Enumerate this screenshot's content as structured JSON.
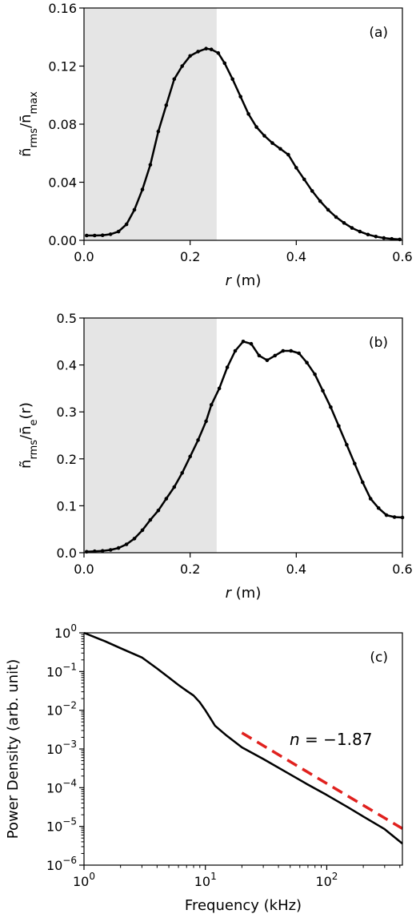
{
  "chart_data": [
    {
      "type": "line",
      "panel_label": "(a)",
      "xlabel": "r (m)",
      "ylabel": "ñrms/n̄max",
      "xlim": [
        0.0,
        0.6
      ],
      "ylim": [
        0.0,
        0.16
      ],
      "xticks": [
        0.0,
        0.2,
        0.4,
        0.6
      ],
      "xtick_labels": [
        "0.0",
        "0.2",
        "0.4",
        "0.6"
      ],
      "yticks": [
        0.0,
        0.04,
        0.08,
        0.12,
        0.16
      ],
      "ytick_labels": [
        "0.00",
        "0.04",
        "0.08",
        "0.12",
        "0.16"
      ],
      "shaded_region": [
        0.0,
        0.25
      ],
      "grid": false,
      "line_color": "#000000",
      "shade_color": "#e5e5e5",
      "x": [
        0.005,
        0.02,
        0.035,
        0.05,
        0.065,
        0.08,
        0.095,
        0.11,
        0.125,
        0.14,
        0.155,
        0.17,
        0.185,
        0.2,
        0.215,
        0.23,
        0.24,
        0.253,
        0.265,
        0.28,
        0.295,
        0.31,
        0.325,
        0.34,
        0.355,
        0.37,
        0.385,
        0.4,
        0.415,
        0.43,
        0.445,
        0.46,
        0.475,
        0.49,
        0.505,
        0.52,
        0.535,
        0.55,
        0.565,
        0.58,
        0.595
      ],
      "y": [
        0.0033,
        0.0033,
        0.0035,
        0.0042,
        0.006,
        0.011,
        0.021,
        0.035,
        0.052,
        0.075,
        0.093,
        0.111,
        0.12,
        0.127,
        0.13,
        0.132,
        0.1315,
        0.129,
        0.122,
        0.111,
        0.099,
        0.087,
        0.078,
        0.072,
        0.067,
        0.063,
        0.059,
        0.05,
        0.042,
        0.034,
        0.027,
        0.021,
        0.016,
        0.012,
        0.0085,
        0.006,
        0.004,
        0.0026,
        0.0016,
        0.001,
        0.0006
      ]
    },
    {
      "type": "line",
      "panel_label": "(b)",
      "xlabel": "r (m)",
      "ylabel": "ñrms/n̄e(r)",
      "xlim": [
        0.0,
        0.6
      ],
      "ylim": [
        0.0,
        0.5
      ],
      "xticks": [
        0.0,
        0.2,
        0.4,
        0.6
      ],
      "xtick_labels": [
        "0.0",
        "0.2",
        "0.4",
        "0.6"
      ],
      "yticks": [
        0.0,
        0.1,
        0.2,
        0.3,
        0.4,
        0.5
      ],
      "ytick_labels": [
        "0.0",
        "0.1",
        "0.2",
        "0.3",
        "0.4",
        "0.5"
      ],
      "shaded_region": [
        0.0,
        0.25
      ],
      "grid": false,
      "line_color": "#000000",
      "shade_color": "#e5e5e5",
      "x": [
        0.005,
        0.02,
        0.035,
        0.05,
        0.065,
        0.08,
        0.095,
        0.11,
        0.125,
        0.14,
        0.155,
        0.17,
        0.185,
        0.2,
        0.215,
        0.23,
        0.24,
        0.255,
        0.27,
        0.285,
        0.3,
        0.315,
        0.33,
        0.345,
        0.36,
        0.375,
        0.39,
        0.405,
        0.42,
        0.435,
        0.45,
        0.465,
        0.48,
        0.495,
        0.51,
        0.525,
        0.54,
        0.555,
        0.57,
        0.585,
        0.6
      ],
      "y": [
        0.002,
        0.003,
        0.004,
        0.006,
        0.01,
        0.018,
        0.03,
        0.048,
        0.07,
        0.09,
        0.115,
        0.14,
        0.17,
        0.205,
        0.24,
        0.28,
        0.315,
        0.35,
        0.395,
        0.43,
        0.45,
        0.445,
        0.42,
        0.41,
        0.42,
        0.43,
        0.43,
        0.425,
        0.405,
        0.38,
        0.345,
        0.31,
        0.27,
        0.23,
        0.19,
        0.15,
        0.115,
        0.095,
        0.08,
        0.076,
        0.075
      ]
    },
    {
      "type": "line",
      "panel_label": "(c)",
      "xlabel": "Frequency (kHz)",
      "ylabel": "Power Density (arb. unit)",
      "xscale": "log",
      "yscale": "log",
      "xlim": [
        1,
        420
      ],
      "ylim": [
        1e-06,
        1
      ],
      "xticks": [
        1,
        10,
        100
      ],
      "yticks": [
        1e-06,
        1e-05,
        0.0001,
        0.001,
        0.01,
        0.1,
        1
      ],
      "xtick_base": "10",
      "xtick_exponents": [
        "0",
        "1",
        "2"
      ],
      "ytick_base": "10",
      "ytick_exponents": [
        "−6",
        "−5",
        "−4",
        "−3",
        "−2",
        "−1",
        "0"
      ],
      "grid": false,
      "annotation": "n = −1.87",
      "series": [
        {
          "color": "#000000",
          "style": "solid",
          "x": [
            1,
            1.5,
            2,
            3,
            4,
            5,
            6,
            7,
            8,
            9,
            10,
            11,
            12,
            15,
            20,
            30,
            50,
            70,
            100,
            150,
            200,
            300,
            420
          ],
          "y": [
            1.0,
            0.6,
            0.4,
            0.23,
            0.12,
            0.07,
            0.045,
            0.032,
            0.024,
            0.016,
            0.01,
            0.0062,
            0.004,
            0.0022,
            0.0011,
            0.00055,
            0.00022,
            0.00012,
            6.5e-05,
            3.1e-05,
            1.8e-05,
            8.5e-06,
            3.6e-06
          ]
        },
        {
          "color": "#e0211e",
          "style": "dashed",
          "x": [
            20,
            420
          ],
          "y": [
            0.0026,
            8.8e-06
          ]
        }
      ]
    }
  ]
}
